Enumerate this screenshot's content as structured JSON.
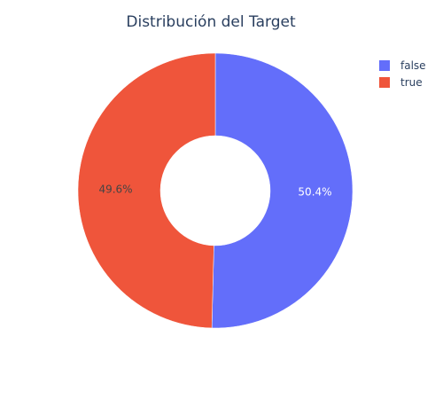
{
  "chart_data": {
    "type": "pie",
    "title": "Distribución del Target",
    "hole": true,
    "slices": [
      {
        "label": "false",
        "value": 50.4,
        "display": "50.4%",
        "color": "#636efa",
        "text_color": "#ffffff"
      },
      {
        "label": "true",
        "value": 49.6,
        "display": "49.6%",
        "color": "#ef553b",
        "text_color": "#444444"
      }
    ],
    "legend": {
      "placement": "top-right",
      "entries": [
        "false",
        "true"
      ]
    }
  }
}
